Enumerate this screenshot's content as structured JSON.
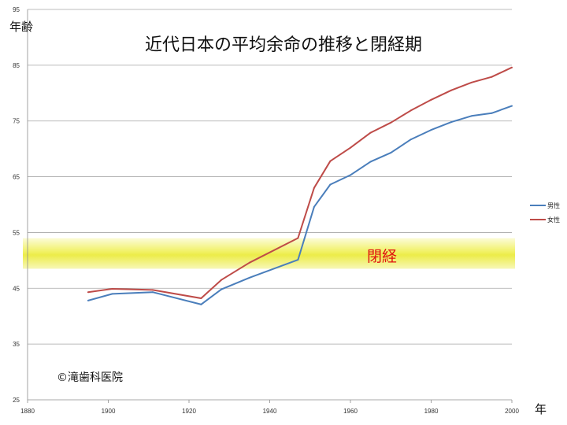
{
  "chart_data": {
    "type": "line",
    "title": "近代日本の平均余命の推移と閉経期",
    "xlabel": "年",
    "ylabel": "年齢",
    "xlim": [
      1880,
      2000
    ],
    "ylim": [
      25,
      95
    ],
    "x_ticks": [
      1880,
      1900,
      1920,
      1940,
      1960,
      1980,
      2000
    ],
    "y_ticks": [
      25,
      35,
      45,
      55,
      65,
      75,
      85,
      95
    ],
    "grid": true,
    "legend_position": "right",
    "series": [
      {
        "name": "男性",
        "color": "#4a7ebb",
        "x": [
          1895,
          1901,
          1911,
          1923,
          1928,
          1935,
          1947,
          1951,
          1955,
          1960,
          1965,
          1970,
          1975,
          1980,
          1985,
          1990,
          1995,
          2000
        ],
        "y": [
          42.8,
          44.0,
          44.3,
          42.1,
          44.8,
          46.9,
          50.1,
          59.6,
          63.6,
          65.3,
          67.7,
          69.3,
          71.7,
          73.4,
          74.8,
          75.9,
          76.4,
          77.7
        ]
      },
      {
        "name": "女性",
        "color": "#be4b48",
        "x": [
          1895,
          1901,
          1911,
          1923,
          1928,
          1935,
          1947,
          1951,
          1955,
          1960,
          1965,
          1970,
          1975,
          1980,
          1985,
          1990,
          1995,
          2000
        ],
        "y": [
          44.3,
          44.9,
          44.7,
          43.2,
          46.5,
          49.6,
          54.0,
          63.0,
          67.8,
          70.2,
          72.9,
          74.7,
          76.9,
          78.8,
          80.5,
          81.9,
          82.9,
          84.6
        ]
      }
    ],
    "annotations": {
      "menopause_band": {
        "label": "閉経",
        "y_range": [
          48.5,
          54.0
        ],
        "color": "#e8e800"
      },
      "copyright": "©滝歯科医院"
    }
  }
}
